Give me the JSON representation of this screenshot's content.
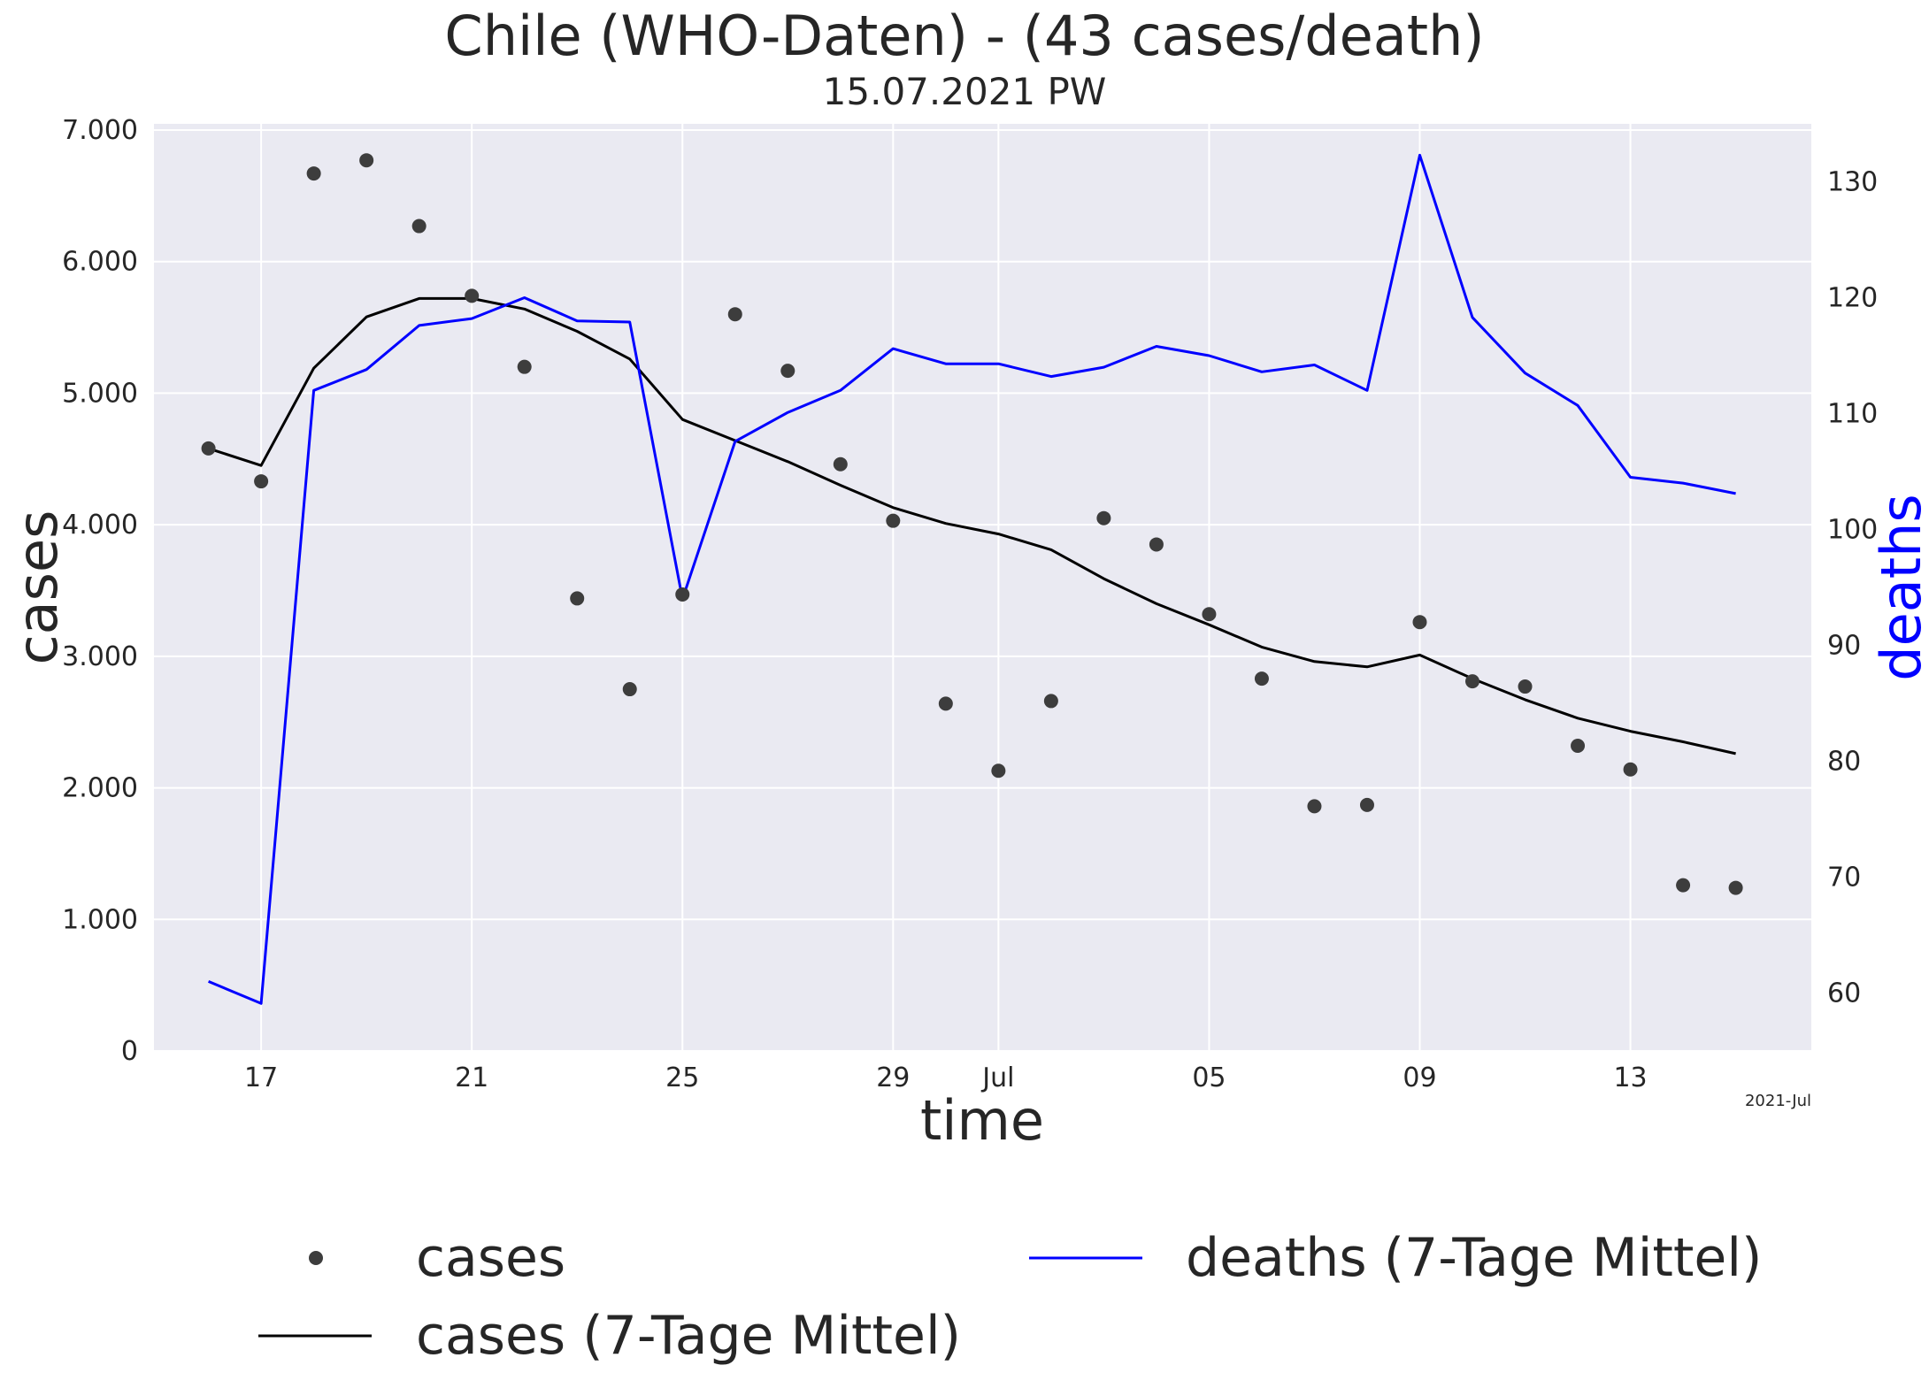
{
  "chart_data": {
    "type": "line",
    "title": "Chile (WHO-Daten) - (43 cases/death)",
    "subtitle": "15.07.2021 PW",
    "xlabel": "time",
    "ylabel": "cases",
    "ylabel_right": "deaths",
    "x_offset_label": "2021-Jul",
    "x_range": [
      "2021-06-16",
      "2021-07-15"
    ],
    "x_ticks": [
      {
        "date": "2021-06-17",
        "label": "17"
      },
      {
        "date": "2021-06-21",
        "label": "21"
      },
      {
        "date": "2021-06-25",
        "label": "25"
      },
      {
        "date": "2021-06-29",
        "label": "29"
      },
      {
        "date": "2021-07-01",
        "label": "Jul"
      },
      {
        "date": "2021-07-05",
        "label": "05"
      },
      {
        "date": "2021-07-09",
        "label": "09"
      },
      {
        "date": "2021-07-13",
        "label": "13"
      }
    ],
    "y_left": {
      "min": 0,
      "max": 7000,
      "ticks": [
        0,
        1000,
        2000,
        3000,
        4000,
        5000,
        6000,
        7000
      ],
      "tick_labels": [
        "0",
        "1.000",
        "2.000",
        "3.000",
        "4.000",
        "5.000",
        "6.000",
        "7.000"
      ]
    },
    "y_right": {
      "min": 55,
      "max": 135,
      "ticks": [
        60,
        70,
        80,
        90,
        100,
        110,
        120,
        130
      ],
      "tick_labels": [
        "60",
        "70",
        "80",
        "90",
        "100",
        "110",
        "120",
        "130"
      ]
    },
    "grid": true,
    "legend_position": "bottom",
    "dates": [
      "2021-06-16",
      "2021-06-17",
      "2021-06-18",
      "2021-06-19",
      "2021-06-20",
      "2021-06-21",
      "2021-06-22",
      "2021-06-23",
      "2021-06-24",
      "2021-06-25",
      "2021-06-26",
      "2021-06-27",
      "2021-06-28",
      "2021-06-29",
      "2021-06-30",
      "2021-07-01",
      "2021-07-02",
      "2021-07-03",
      "2021-07-04",
      "2021-07-05",
      "2021-07-06",
      "2021-07-07",
      "2021-07-08",
      "2021-07-09",
      "2021-07-10",
      "2021-07-11",
      "2021-07-12",
      "2021-07-13",
      "2021-07-14",
      "2021-07-15"
    ],
    "series": [
      {
        "name": "cases",
        "kind": "scatter",
        "axis": "left",
        "color": "#3d3d3d",
        "values": [
          4580,
          4330,
          6670,
          6770,
          6270,
          5740,
          5200,
          3440,
          2750,
          3470,
          5600,
          5170,
          4460,
          4030,
          2640,
          2130,
          2660,
          4050,
          3850,
          3320,
          2830,
          1860,
          1870,
          3260,
          2810,
          2770,
          2320,
          2140,
          1260,
          1240
        ]
      },
      {
        "name": "cases (7-Tage Mittel)",
        "kind": "line",
        "axis": "left",
        "color": "#000000",
        "values": [
          4580,
          4450,
          5190,
          5580,
          5720,
          5720,
          5640,
          5470,
          5260,
          4800,
          4640,
          4480,
          4300,
          4130,
          4010,
          3930,
          3810,
          3590,
          3400,
          3240,
          3070,
          2960,
          2920,
          3010,
          2830,
          2670,
          2530,
          2430,
          2350,
          2260
        ]
      },
      {
        "name": "deaths (7-Tage Mittel)",
        "kind": "line",
        "axis": "right",
        "color": "#0000ff",
        "values": [
          61.0,
          59.1,
          112.0,
          113.8,
          117.6,
          118.2,
          120.0,
          118.0,
          117.9,
          94.0,
          107.6,
          110.1,
          112.0,
          115.6,
          114.3,
          114.3,
          113.2,
          114.0,
          115.8,
          115.0,
          113.6,
          114.2,
          112.0,
          132.3,
          118.3,
          113.5,
          110.7,
          104.5,
          104.0,
          103.1
        ]
      }
    ]
  }
}
